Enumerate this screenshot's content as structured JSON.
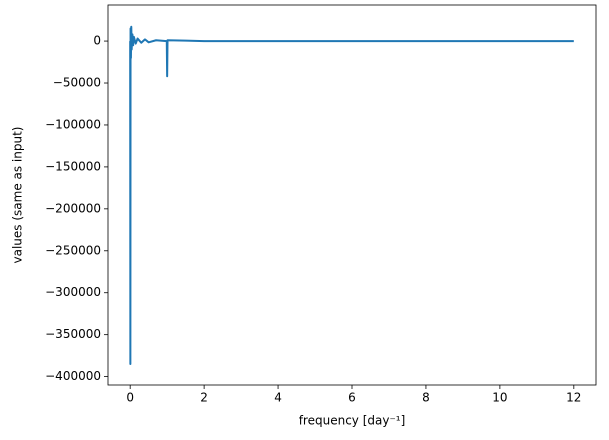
{
  "chart_data": {
    "type": "line",
    "x_label": "frequency [day⁻¹]",
    "y_label": "values (same as input)",
    "x": [
      0,
      0.005,
      0.01,
      0.02,
      0.03,
      0.04,
      0.06,
      0.08,
      0.1,
      0.15,
      0.2,
      0.3,
      0.4,
      0.5,
      0.7,
      0.99,
      1.0,
      1.01,
      1.5,
      2,
      4,
      6,
      8,
      10,
      12
    ],
    "series": [
      {
        "color": "#1f77b4",
        "values": [
          0,
          -385000,
          15000,
          -20000,
          17000,
          -10000,
          8000,
          -5000,
          5000,
          -3000,
          3000,
          -2000,
          2000,
          -1500,
          1000,
          0,
          -42000,
          1000,
          500,
          0,
          0,
          0,
          0,
          0,
          0
        ]
      }
    ],
    "xlim": [
      -0.6,
      12.6
    ],
    "xticks": [
      0,
      2,
      4,
      6,
      8,
      10,
      12
    ],
    "ylim": [
      -410000,
      43000
    ],
    "yticks": [
      {
        "value": -400000,
        "label": "−400000"
      },
      {
        "value": -350000,
        "label": "−350000"
      },
      {
        "value": -300000,
        "label": "−300000"
      },
      {
        "value": -250000,
        "label": "−250000"
      },
      {
        "value": -200000,
        "label": "−200000"
      },
      {
        "value": -150000,
        "label": "−150000"
      },
      {
        "value": -100000,
        "label": "−100000"
      },
      {
        "value": -50000,
        "label": "−50000"
      },
      0
    ],
    "grid": false
  }
}
